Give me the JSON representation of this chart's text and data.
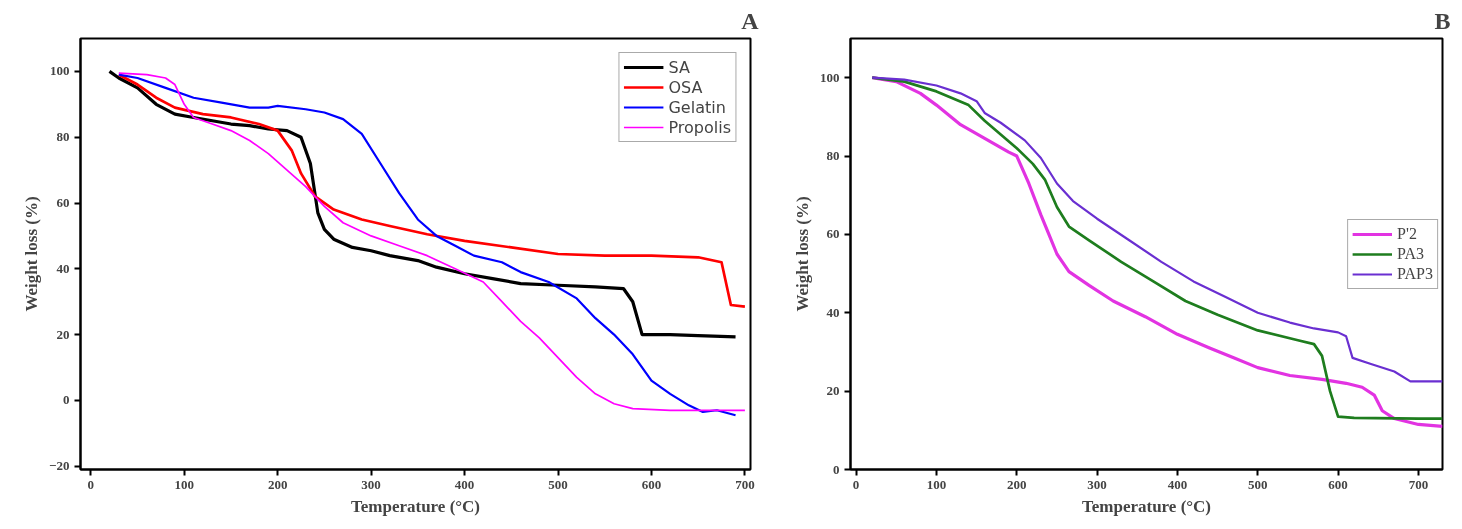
{
  "chart_data": [
    {
      "type": "line",
      "title": "A",
      "xlabel": "Temperature (°C)",
      "ylabel": "Weight loss (%)",
      "xlim": [
        -11,
        706
      ],
      "ylim": [
        -21,
        110
      ],
      "xticks": [
        0,
        100,
        200,
        300,
        400,
        500,
        600,
        700
      ],
      "yticks": [
        -20,
        0,
        20,
        40,
        60,
        80,
        100
      ],
      "grid": false,
      "legend": "top right",
      "series": [
        {
          "name": "SA",
          "color": "#000000",
          "x": [
            20,
            30,
            50,
            70,
            90,
            110,
            130,
            150,
            170,
            190,
            210,
            225,
            235,
            243,
            250,
            260,
            280,
            300,
            320,
            350,
            370,
            400,
            430,
            460,
            500,
            540,
            570,
            580,
            590,
            620,
            650,
            690
          ],
          "values": [
            100,
            98,
            95,
            90,
            87,
            86,
            85,
            84,
            83.5,
            82.5,
            82,
            80,
            72,
            57,
            52,
            49,
            46.5,
            45.5,
            44,
            42.5,
            40.5,
            38.5,
            37,
            35.5,
            35,
            34.5,
            34,
            30,
            20,
            20,
            19.7,
            19.3
          ]
        },
        {
          "name": "OSA",
          "color": "#ff0000",
          "x": [
            30,
            50,
            70,
            90,
            120,
            150,
            180,
            200,
            215,
            225,
            240,
            260,
            290,
            320,
            360,
            400,
            450,
            500,
            550,
            600,
            650,
            675,
            685,
            700
          ],
          "values": [
            99,
            96,
            92,
            89,
            87,
            86,
            84,
            82,
            76,
            69,
            62,
            58,
            55,
            53,
            50.5,
            48.5,
            46.5,
            44.5,
            44,
            44,
            43.5,
            42,
            29,
            28.5
          ]
        },
        {
          "name": "Gelatin",
          "color": "#0000ff",
          "x": [
            30,
            50,
            80,
            110,
            140,
            170,
            190,
            200,
            230,
            250,
            270,
            290,
            310,
            330,
            350,
            370,
            390,
            410,
            440,
            460,
            490,
            520,
            540,
            560,
            580,
            600,
            620,
            640,
            655,
            670,
            690
          ],
          "values": [
            99,
            98,
            95,
            92,
            90.5,
            89,
            89,
            89.5,
            88.5,
            87.5,
            85.5,
            81,
            72,
            63,
            55,
            50,
            47,
            44,
            42,
            39,
            36,
            31,
            25,
            20,
            14,
            6,
            2,
            -1.5,
            -3.5,
            -3,
            -4.5
          ]
        },
        {
          "name": "Propolis",
          "color": "#ff00ff",
          "x": [
            30,
            60,
            80,
            90,
            100,
            110,
            130,
            150,
            170,
            190,
            210,
            230,
            250,
            270,
            300,
            330,
            360,
            390,
            420,
            440,
            460,
            480,
            500,
            520,
            540,
            560,
            580,
            620,
            700
          ],
          "values": [
            99.5,
            99,
            98,
            96,
            90,
            86,
            84,
            82,
            79,
            75,
            70,
            65,
            59,
            54,
            50,
            47,
            44,
            40,
            36,
            30,
            24,
            19,
            13,
            7,
            2,
            -1,
            -2.5,
            -3,
            -3
          ]
        }
      ]
    },
    {
      "type": "line",
      "title": "B",
      "xlabel": "Temperature (°C)",
      "ylabel": "Weight loss (%)",
      "xlim": [
        -7,
        730
      ],
      "ylim": [
        0,
        110
      ],
      "xticks": [
        0,
        100,
        200,
        300,
        400,
        500,
        600,
        700
      ],
      "yticks": [
        0,
        20,
        40,
        60,
        80,
        100
      ],
      "grid": false,
      "legend": "right",
      "series": [
        {
          "name": "P'2",
          "color": "#e233e2",
          "x": [
            20,
            50,
            80,
            100,
            130,
            160,
            190,
            200,
            215,
            230,
            240,
            250,
            265,
            290,
            320,
            360,
            400,
            440,
            470,
            500,
            540,
            580,
            610,
            630,
            645,
            655,
            670,
            700,
            730
          ],
          "values": [
            100,
            99,
            96,
            93,
            88,
            84.5,
            81,
            80,
            73,
            65,
            60,
            55,
            50.5,
            47,
            43,
            39,
            34.5,
            31,
            28.5,
            26,
            24,
            23,
            22,
            21,
            19,
            15,
            13,
            11.5,
            11
          ]
        },
        {
          "name": "PA3",
          "color": "#1e7d1e",
          "x": [
            20,
            60,
            100,
            140,
            160,
            180,
            200,
            220,
            235,
            250,
            265,
            290,
            330,
            370,
            410,
            450,
            500,
            550,
            570,
            580,
            590,
            600,
            620,
            700,
            730
          ],
          "values": [
            100,
            99,
            96.5,
            93,
            89,
            85.5,
            82,
            78,
            74,
            67,
            62,
            58.5,
            53,
            48,
            43,
            39.5,
            35.5,
            33,
            32,
            29,
            20,
            13.5,
            13.2,
            13,
            13
          ]
        },
        {
          "name": "PAP3",
          "color": "#6a2fd1",
          "x": [
            20,
            60,
            100,
            130,
            150,
            160,
            180,
            210,
            230,
            250,
            270,
            300,
            340,
            380,
            420,
            460,
            500,
            540,
            570,
            600,
            610,
            618,
            640,
            670,
            690,
            730
          ],
          "values": [
            100,
            99.5,
            98,
            96,
            94,
            91,
            88.5,
            84,
            79.5,
            73,
            68.5,
            64,
            58.5,
            53,
            48,
            44,
            40,
            37.5,
            36,
            35,
            34,
            28.5,
            27,
            25,
            22.5,
            22.5
          ]
        }
      ]
    }
  ]
}
